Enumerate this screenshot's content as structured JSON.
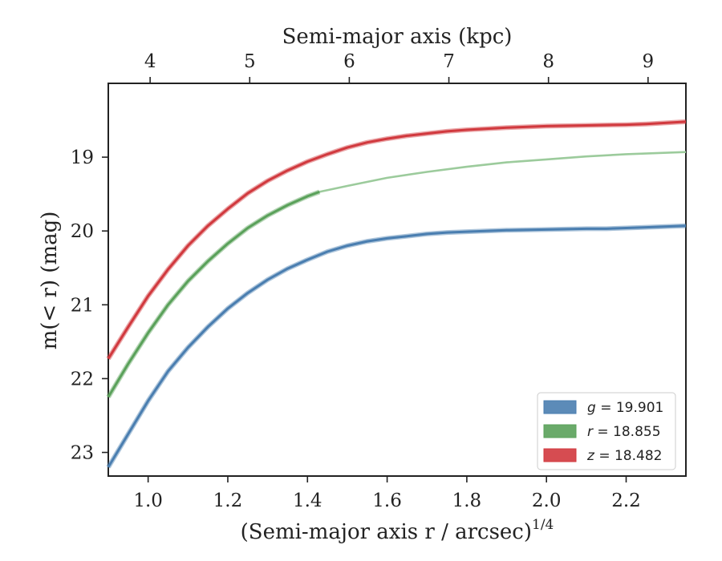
{
  "chart_data": {
    "type": "line",
    "xlabel_bottom": "(Semi-major axis r / arcsec)",
    "xlabel_bottom_superscript": "1/4",
    "xlabel_top": "Semi-major axis (kpc)",
    "ylabel": "m(< r) (mag)",
    "xlim": [
      0.9,
      2.35
    ],
    "ylim": [
      23.32,
      18.0
    ],
    "y_inverted": true,
    "x_ticks": [
      1.0,
      1.2,
      1.4,
      1.6,
      1.8,
      2.0,
      2.2
    ],
    "x_tick_labels": [
      "1.0",
      "1.2",
      "1.4",
      "1.6",
      "1.8",
      "2.0",
      "2.2"
    ],
    "y_ticks": [
      19,
      20,
      21,
      22,
      23
    ],
    "y_tick_labels": [
      "19",
      "20",
      "21",
      "22",
      "23"
    ],
    "top_ticks_kpc": [
      4,
      5,
      6,
      7,
      8,
      9
    ],
    "top_tick_labels": [
      "4",
      "5",
      "6",
      "7",
      "8",
      "9"
    ],
    "top_tick_positions_x": [
      1.005,
      1.255,
      1.505,
      1.755,
      2.005,
      2.255
    ],
    "grid": false,
    "legend_position": "lower right",
    "series": [
      {
        "name": "g = 19.901",
        "band": "g",
        "total_mag": "19.901",
        "color": "#4a7eb0",
        "x": [
          0.9,
          0.95,
          1.0,
          1.05,
          1.1,
          1.15,
          1.2,
          1.25,
          1.3,
          1.35,
          1.4,
          1.45,
          1.5,
          1.55,
          1.6,
          1.65,
          1.7,
          1.75,
          1.8,
          1.9,
          2.0,
          2.1,
          2.15,
          2.2,
          2.25,
          2.35
        ],
        "y": [
          23.2,
          22.75,
          22.3,
          21.9,
          21.58,
          21.3,
          21.05,
          20.84,
          20.66,
          20.51,
          20.39,
          20.28,
          20.2,
          20.14,
          20.1,
          20.07,
          20.04,
          20.02,
          20.01,
          19.99,
          19.98,
          19.97,
          19.97,
          19.96,
          19.95,
          19.93
        ],
        "extended_x": [],
        "extended_y": []
      },
      {
        "name": "r = 18.855",
        "band": "r",
        "total_mag": "18.855",
        "color": "#5aa15a",
        "x": [
          0.9,
          0.95,
          1.0,
          1.05,
          1.1,
          1.15,
          1.2,
          1.25,
          1.3,
          1.35,
          1.4,
          1.43
        ],
        "y": [
          22.25,
          21.8,
          21.38,
          21.0,
          20.68,
          20.41,
          20.17,
          19.96,
          19.79,
          19.65,
          19.53,
          19.47
        ],
        "extended_color": "#9ccb9c",
        "extended_x": [
          1.43,
          1.5,
          1.6,
          1.7,
          1.8,
          1.9,
          2.0,
          2.1,
          2.2,
          2.35
        ],
        "extended_y": [
          19.47,
          19.39,
          19.28,
          19.2,
          19.13,
          19.07,
          19.03,
          18.99,
          18.96,
          18.93
        ]
      },
      {
        "name": "z = 18.482",
        "band": "z",
        "total_mag": "18.482",
        "color": "#d1393e",
        "x": [
          0.9,
          0.95,
          1.0,
          1.05,
          1.1,
          1.15,
          1.2,
          1.25,
          1.3,
          1.35,
          1.4,
          1.45,
          1.5,
          1.55,
          1.6,
          1.65,
          1.7,
          1.75,
          1.8,
          1.9,
          2.0,
          2.1,
          2.2,
          2.25,
          2.35
        ],
        "y": [
          21.73,
          21.3,
          20.88,
          20.52,
          20.2,
          19.93,
          19.7,
          19.49,
          19.32,
          19.18,
          19.06,
          18.96,
          18.87,
          18.8,
          18.75,
          18.71,
          18.68,
          18.65,
          18.63,
          18.6,
          18.58,
          18.57,
          18.56,
          18.55,
          18.52
        ],
        "extended_x": [],
        "extended_y": []
      }
    ]
  }
}
